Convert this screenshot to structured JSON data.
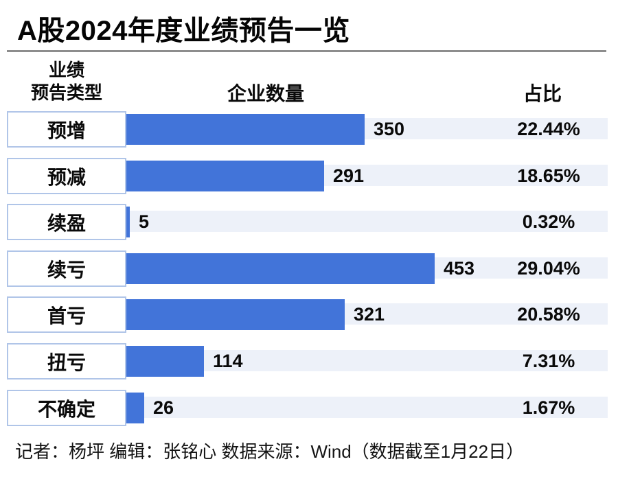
{
  "title": "A股2024年度业绩预告一览",
  "columns": {
    "category": "业绩\n预告类型",
    "count": "企业数量",
    "share": "占比"
  },
  "chart_data": {
    "type": "bar",
    "orientation": "horizontal",
    "title": "A股2024年度业绩预告一览",
    "categories": [
      "预增",
      "预减",
      "续盈",
      "续亏",
      "首亏",
      "扭亏",
      "不确定"
    ],
    "series": [
      {
        "name": "企业数量",
        "values": [
          350,
          291,
          5,
          453,
          321,
          114,
          26
        ]
      },
      {
        "name": "占比",
        "values": [
          "22.44%",
          "18.65%",
          "0.32%",
          "29.04%",
          "20.58%",
          "7.31%",
          "1.67%"
        ]
      }
    ],
    "max_value": 453,
    "legend": "none",
    "grid": false,
    "colors": {
      "bar": "#4274d9",
      "track": "#edf1f9",
      "box_border": "#b0c5e8",
      "divider": "#8d8d8d"
    }
  },
  "footer": "记者：杨坪 编辑：张铭心  数据来源：Wind（数据截至1月22日）"
}
